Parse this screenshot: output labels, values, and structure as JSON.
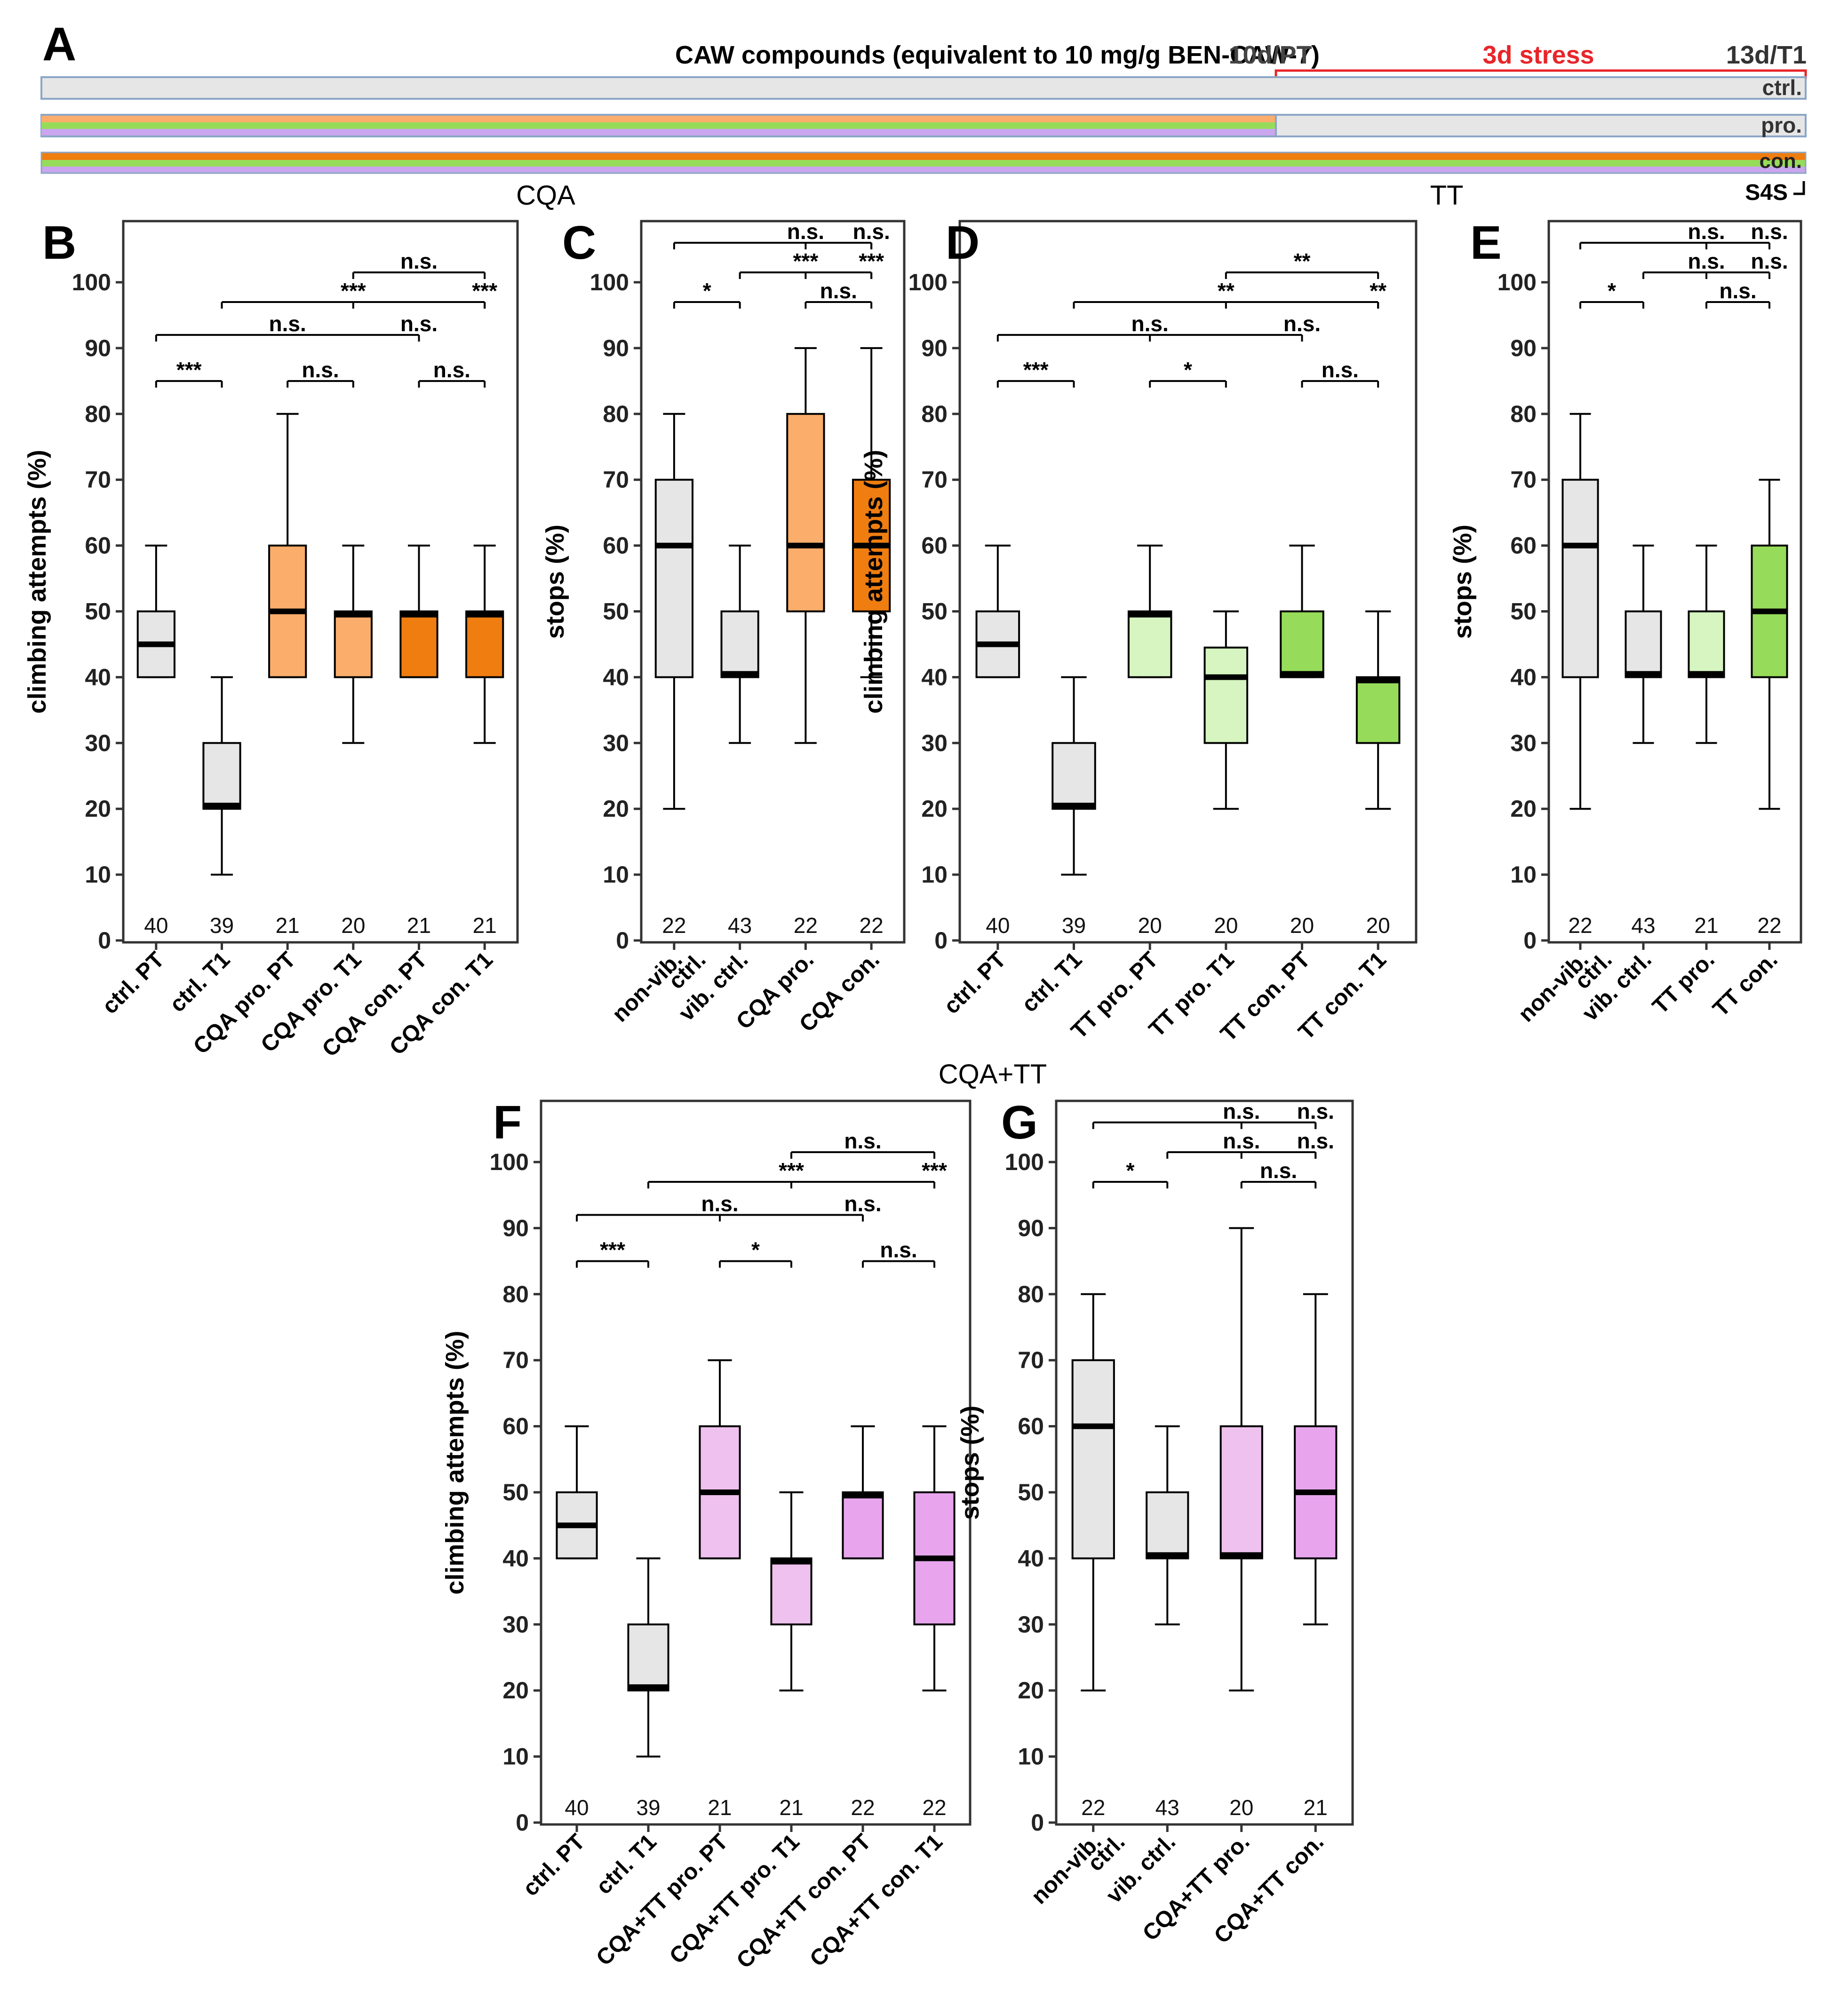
{
  "colors": {
    "ctrl": "#e6e6e6",
    "cqa_pro": "#fbad6b",
    "cqa_con": "#ef7d10",
    "tt_pro": "#d6f5c0",
    "tt_con": "#96dc5a",
    "cqatt_pro": "#efc1ee",
    "cqatt_con": "#e8a5ee",
    "stress_red": "#e8252a",
    "bar_blue": "#8aa6c6",
    "lavender": "#c9a6ee",
    "axis": "#000000"
  },
  "timeline": {
    "panel_label": "A",
    "title": "CAW compounds (equivalent to 10 mg/g BEN-CAW-7)",
    "pt_label": "10d/PT",
    "stress_label": "3d stress",
    "t1_label": "13d/T1",
    "rows": [
      {
        "name": "ctrl.",
        "supplement_until": 0,
        "stripes": []
      },
      {
        "name": "pro.",
        "supplement_until": 0.7,
        "stripes": [
          "#fbad6b",
          "#96dc5a",
          "#c9a6ee"
        ]
      },
      {
        "name": "con.",
        "supplement_until": 1.0,
        "stripes": [
          "#ef7d10",
          "#96dc5a",
          "#c9a6ee"
        ]
      }
    ],
    "s4s_label": "S4S",
    "cqa_label": "CQA",
    "tt_label": "TT",
    "cqatt_label": "CQA+TT"
  },
  "chart_data": [
    {
      "panel": "B",
      "type": "box",
      "ylabel": "climbing attempts (%)",
      "ylim": [
        0,
        100
      ],
      "categories": [
        "ctrl. PT",
        "ctrl. T1",
        "CQA pro. PT",
        "CQA pro. T1",
        "CQA con. PT",
        "CQA con. T1"
      ],
      "boxes": [
        {
          "min": 40,
          "q1": 40,
          "median": 45,
          "q3": 50,
          "max": 60,
          "n": "40",
          "color": "#e6e6e6"
        },
        {
          "min": 10,
          "q1": 20,
          "median": 20.5,
          "q3": 30,
          "max": 40,
          "n": "39",
          "color": "#e6e6e6"
        },
        {
          "min": 40,
          "q1": 40,
          "median": 50,
          "q3": 60,
          "max": 80,
          "n": "21",
          "color": "#fbad6b"
        },
        {
          "min": 30,
          "q1": 40,
          "median": 49.5,
          "q3": 50,
          "max": 60,
          "n": "20",
          "color": "#fbad6b"
        },
        {
          "min": 40,
          "q1": 40,
          "median": 49.5,
          "q3": 50,
          "max": 60,
          "n": "21",
          "color": "#ef7d10"
        },
        {
          "min": 30,
          "q1": 40,
          "median": 49.5,
          "q3": 50,
          "max": 60,
          "n": "21",
          "color": "#ef7d10"
        }
      ],
      "significance": [
        {
          "from": 1,
          "to": 2,
          "y": 85,
          "label": "***"
        },
        {
          "from": 3,
          "to": 4,
          "y": 85,
          "label": "n.s."
        },
        {
          "from": 5,
          "to": 6,
          "y": 85,
          "label": "n.s."
        },
        {
          "from": 1,
          "to": 5,
          "y": 92,
          "label": "n.s.",
          "mid": 3
        },
        {
          "from": 1,
          "to": 5,
          "y": 92,
          "label": "n.s.",
          "at": 5
        },
        {
          "from": 2,
          "to": 6,
          "y": 97,
          "label": "***",
          "at": 4
        },
        {
          "from": 2,
          "to": 6,
          "y": 97,
          "label": "***",
          "at": 6
        },
        {
          "from": 4,
          "to": 6,
          "y": 101.5,
          "label": "n.s."
        }
      ]
    },
    {
      "panel": "C",
      "type": "box",
      "ylabel": "stops (%)",
      "ylim": [
        0,
        100
      ],
      "categories": [
        "non-vib.\nctrl.",
        "vib. ctrl.",
        "CQA pro.",
        "CQA con."
      ],
      "boxes": [
        {
          "min": 20,
          "q1": 40,
          "median": 60,
          "q3": 70,
          "max": 80,
          "n": "22",
          "color": "#e6e6e6"
        },
        {
          "min": 30,
          "q1": 40,
          "median": 40.5,
          "q3": 50,
          "max": 60,
          "n": "43",
          "color": "#e6e6e6"
        },
        {
          "min": 30,
          "q1": 50,
          "median": 60,
          "q3": 80,
          "max": 90,
          "n": "22",
          "color": "#fbad6b"
        },
        {
          "min": 40,
          "q1": 50,
          "median": 60,
          "q3": 70,
          "max": 90,
          "n": "22",
          "color": "#ef7d10"
        }
      ],
      "significance": [
        {
          "from": 1,
          "to": 2,
          "y": 97,
          "label": "*"
        },
        {
          "from": 3,
          "to": 4,
          "y": 97,
          "label": "n.s."
        },
        {
          "from": 2,
          "to": 4,
          "y": 101.5,
          "label": "***",
          "at": 3
        },
        {
          "from": 2,
          "to": 4,
          "y": 101.5,
          "label": "***",
          "at": 4
        },
        {
          "from": 1,
          "to": 4,
          "y": 106,
          "label": "n.s.",
          "at": 3
        },
        {
          "from": 1,
          "to": 4,
          "y": 106,
          "label": "n.s.",
          "at": 4
        }
      ]
    },
    {
      "panel": "D",
      "type": "box",
      "ylabel": "climbing attempts (%)",
      "ylim": [
        0,
        100
      ],
      "categories": [
        "ctrl. PT",
        "ctrl. T1",
        "TT pro. PT",
        "TT pro. T1",
        "TT con. PT",
        "TT con. T1"
      ],
      "boxes": [
        {
          "min": 40,
          "q1": 40,
          "median": 45,
          "q3": 50,
          "max": 60,
          "n": "40",
          "color": "#e6e6e6"
        },
        {
          "min": 10,
          "q1": 20,
          "median": 20.5,
          "q3": 30,
          "max": 40,
          "n": "39",
          "color": "#e6e6e6"
        },
        {
          "min": 40,
          "q1": 40,
          "median": 49.5,
          "q3": 50,
          "max": 60,
          "n": "20",
          "color": "#d6f5c0"
        },
        {
          "min": 20,
          "q1": 30,
          "median": 40,
          "q3": 44.5,
          "max": 50,
          "n": "20",
          "color": "#d6f5c0"
        },
        {
          "min": 40,
          "q1": 40,
          "median": 40.5,
          "q3": 50,
          "max": 60,
          "n": "20",
          "color": "#96dc5a"
        },
        {
          "min": 20,
          "q1": 30,
          "median": 39.5,
          "q3": 40,
          "max": 50,
          "n": "20",
          "color": "#96dc5a"
        }
      ],
      "significance": [
        {
          "from": 1,
          "to": 2,
          "y": 85,
          "label": "***"
        },
        {
          "from": 3,
          "to": 4,
          "y": 85,
          "label": "*"
        },
        {
          "from": 5,
          "to": 6,
          "y": 85,
          "label": "n.s."
        },
        {
          "from": 1,
          "to": 5,
          "y": 92,
          "label": "n.s.",
          "at": 3
        },
        {
          "from": 1,
          "to": 5,
          "y": 92,
          "label": "n.s.",
          "at": 5
        },
        {
          "from": 2,
          "to": 6,
          "y": 97,
          "label": "**",
          "at": 4
        },
        {
          "from": 2,
          "to": 6,
          "y": 97,
          "label": "**",
          "at": 6
        },
        {
          "from": 4,
          "to": 6,
          "y": 101.5,
          "label": "**"
        }
      ]
    },
    {
      "panel": "E",
      "type": "box",
      "ylabel": "stops (%)",
      "ylim": [
        0,
        100
      ],
      "categories": [
        "non-vib.\nctrl.",
        "vib. ctrl.",
        "TT pro.",
        "TT con."
      ],
      "boxes": [
        {
          "min": 20,
          "q1": 40,
          "median": 60,
          "q3": 70,
          "max": 80,
          "n": "22",
          "color": "#e6e6e6"
        },
        {
          "min": 30,
          "q1": 40,
          "median": 40.5,
          "q3": 50,
          "max": 60,
          "n": "43",
          "color": "#e6e6e6"
        },
        {
          "min": 30,
          "q1": 40,
          "median": 40.5,
          "q3": 50,
          "max": 60,
          "n": "21",
          "color": "#d6f5c0"
        },
        {
          "min": 20,
          "q1": 40,
          "median": 50,
          "q3": 60,
          "max": 70,
          "n": "22",
          "color": "#96dc5a"
        }
      ],
      "significance": [
        {
          "from": 1,
          "to": 2,
          "y": 97,
          "label": "*"
        },
        {
          "from": 3,
          "to": 4,
          "y": 97,
          "label": "n.s."
        },
        {
          "from": 2,
          "to": 4,
          "y": 101.5,
          "label": "n.s.",
          "at": 3
        },
        {
          "from": 2,
          "to": 4,
          "y": 101.5,
          "label": "n.s.",
          "at": 4
        },
        {
          "from": 1,
          "to": 4,
          "y": 106,
          "label": "n.s.",
          "at": 3
        },
        {
          "from": 1,
          "to": 4,
          "y": 106,
          "label": "n.s.",
          "at": 4
        }
      ]
    },
    {
      "panel": "F",
      "type": "box",
      "ylabel": "climbing attempts (%)",
      "ylim": [
        0,
        100
      ],
      "categories": [
        "ctrl. PT",
        "ctrl. T1",
        "CQA+TT pro. PT",
        "CQA+TT pro. T1",
        "CQA+TT con. PT",
        "CQA+TT con. T1"
      ],
      "boxes": [
        {
          "min": 40,
          "q1": 40,
          "median": 45,
          "q3": 50,
          "max": 60,
          "n": "40",
          "color": "#e6e6e6"
        },
        {
          "min": 10,
          "q1": 20,
          "median": 20.5,
          "q3": 30,
          "max": 40,
          "n": "39",
          "color": "#e6e6e6"
        },
        {
          "min": 40,
          "q1": 40,
          "median": 50,
          "q3": 60,
          "max": 70,
          "n": "21",
          "color": "#efc1ee"
        },
        {
          "min": 20,
          "q1": 30,
          "median": 39.5,
          "q3": 40,
          "max": 50,
          "n": "21",
          "color": "#efc1ee"
        },
        {
          "min": 40,
          "q1": 40,
          "median": 49.5,
          "q3": 50,
          "max": 60,
          "n": "22",
          "color": "#e8a5ee"
        },
        {
          "min": 20,
          "q1": 30,
          "median": 40,
          "q3": 50,
          "max": 60,
          "n": "22",
          "color": "#e8a5ee"
        }
      ],
      "significance": [
        {
          "from": 1,
          "to": 2,
          "y": 85,
          "label": "***"
        },
        {
          "from": 3,
          "to": 4,
          "y": 85,
          "label": "*"
        },
        {
          "from": 5,
          "to": 6,
          "y": 85,
          "label": "n.s."
        },
        {
          "from": 1,
          "to": 5,
          "y": 92,
          "label": "n.s.",
          "at": 3
        },
        {
          "from": 1,
          "to": 5,
          "y": 92,
          "label": "n.s.",
          "at": 5
        },
        {
          "from": 2,
          "to": 6,
          "y": 97,
          "label": "***",
          "at": 4
        },
        {
          "from": 2,
          "to": 6,
          "y": 97,
          "label": "***",
          "at": 6
        },
        {
          "from": 4,
          "to": 6,
          "y": 101.5,
          "label": "n.s."
        }
      ]
    },
    {
      "panel": "G",
      "type": "box",
      "ylabel": "stops (%)",
      "ylim": [
        0,
        100
      ],
      "categories": [
        "non-vib.\nctrl.",
        "vib. ctrl.",
        "CQA+TT pro.",
        "CQA+TT con."
      ],
      "boxes": [
        {
          "min": 20,
          "q1": 40,
          "median": 60,
          "q3": 70,
          "max": 80,
          "n": "22",
          "color": "#e6e6e6"
        },
        {
          "min": 30,
          "q1": 40,
          "median": 40.5,
          "q3": 50,
          "max": 60,
          "n": "43",
          "color": "#e6e6e6"
        },
        {
          "min": 20,
          "q1": 40,
          "median": 40.5,
          "q3": 60,
          "max": 90,
          "n": "20",
          "color": "#efc1ee"
        },
        {
          "min": 30,
          "q1": 40,
          "median": 50,
          "q3": 60,
          "max": 80,
          "n": "21",
          "color": "#e8a5ee"
        }
      ],
      "significance": [
        {
          "from": 1,
          "to": 2,
          "y": 97,
          "label": "*"
        },
        {
          "from": 3,
          "to": 4,
          "y": 97,
          "label": "n.s."
        },
        {
          "from": 2,
          "to": 4,
          "y": 101.5,
          "label": "n.s.",
          "at": 3
        },
        {
          "from": 2,
          "to": 4,
          "y": 101.5,
          "label": "n.s.",
          "at": 4
        },
        {
          "from": 1,
          "to": 4,
          "y": 106,
          "label": "n.s.",
          "at": 3
        },
        {
          "from": 1,
          "to": 4,
          "y": 106,
          "label": "n.s.",
          "at": 4
        }
      ]
    }
  ]
}
